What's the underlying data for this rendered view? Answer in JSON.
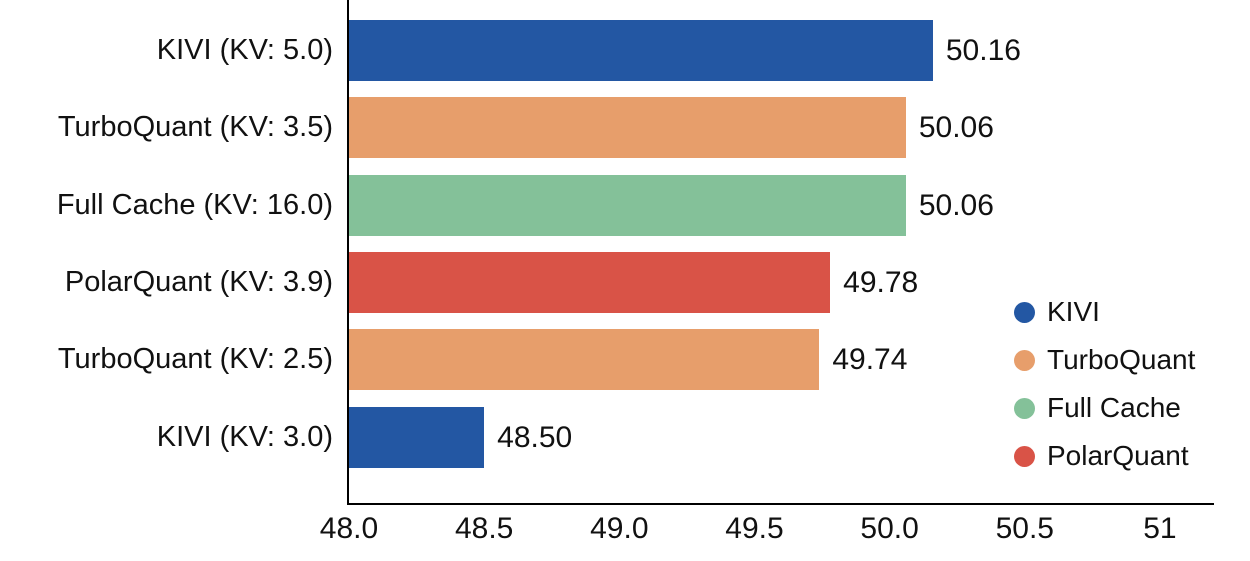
{
  "chart_data": {
    "type": "bar",
    "orientation": "horizontal",
    "categories": [
      "KIVI (KV: 5.0)",
      "TurboQuant (KV: 3.5)",
      "Full Cache (KV: 16.0)",
      "PolarQuant (KV: 3.9)",
      "TurboQuant (KV: 2.5)",
      "KIVI (KV: 3.0)"
    ],
    "values": [
      50.16,
      50.06,
      50.06,
      49.78,
      49.74,
      48.5
    ],
    "value_labels": [
      "50.16",
      "50.06",
      "50.06",
      "49.78",
      "49.74",
      "48.50"
    ],
    "bar_series": [
      "KIVI",
      "TurboQuant",
      "Full Cache",
      "PolarQuant",
      "TurboQuant",
      "KIVI"
    ],
    "series_colors": {
      "KIVI": "#2357A3",
      "TurboQuant": "#E79E6B",
      "Full Cache": "#84C199",
      "PolarQuant": "#D95347"
    },
    "xlim": [
      48.0,
      51.2
    ],
    "xticks": {
      "values": [
        48.0,
        48.5,
        49.0,
        49.5,
        50.0,
        50.5,
        51.0
      ],
      "labels": [
        "48.0",
        "48.5",
        "49.0",
        "49.5",
        "50.0",
        "50.5",
        "51"
      ]
    },
    "legend": {
      "position": "lower right",
      "entries": [
        {
          "label": "KIVI",
          "color": "#2357A3"
        },
        {
          "label": "TurboQuant",
          "color": "#E79E6B"
        },
        {
          "label": "Full Cache",
          "color": "#84C199"
        },
        {
          "label": "PolarQuant",
          "color": "#D95347"
        }
      ]
    },
    "grid": false,
    "axis_color": "#000000",
    "text_color": "#111111"
  }
}
